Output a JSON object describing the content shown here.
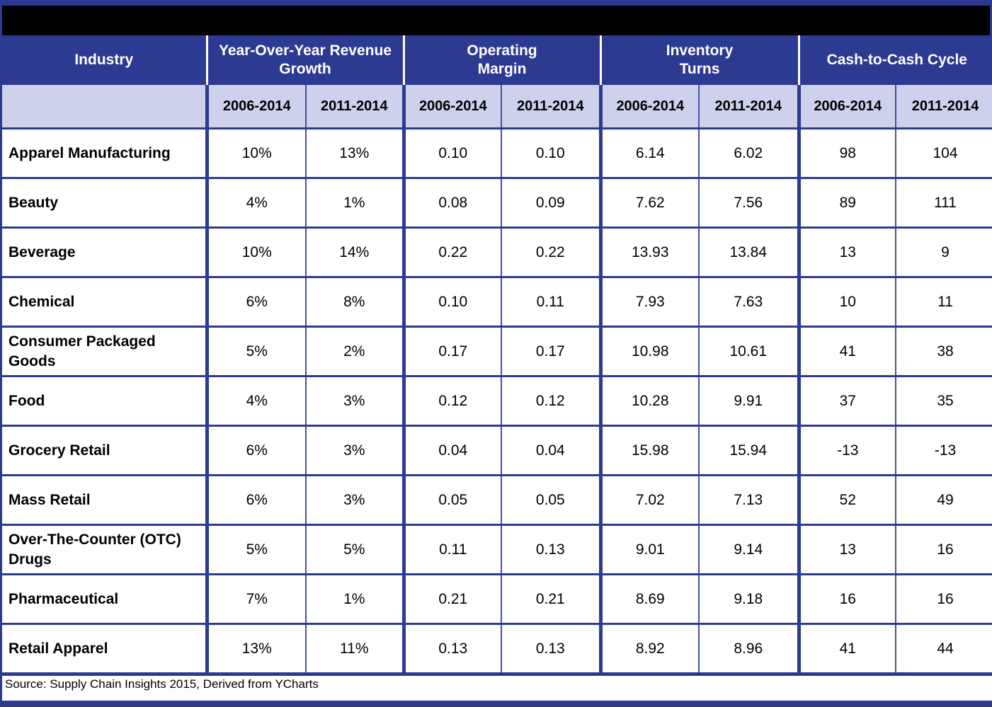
{
  "title_bar": {
    "text": ""
  },
  "table": {
    "group_headers": [
      {
        "label": "Industry"
      },
      {
        "label": "Year-Over-Year Revenue\nGrowth"
      },
      {
        "label": "Operating\nMargin"
      },
      {
        "label": "Inventory\nTurns"
      },
      {
        "label": "Cash-to-Cash Cycle"
      }
    ],
    "period_headers": [
      "2006-2014",
      "2011-2014",
      "2006-2014",
      "2011-2014",
      "2006-2014",
      "2011-2014",
      "2006-2014",
      "2011-2014"
    ],
    "rows": [
      {
        "industry": "Apparel Manufacturing",
        "values": [
          "10%",
          "13%",
          "0.10",
          "0.10",
          "6.14",
          "6.02",
          "98",
          "104"
        ]
      },
      {
        "industry": "Beauty",
        "values": [
          "4%",
          "1%",
          "0.08",
          "0.09",
          "7.62",
          "7.56",
          "89",
          "111"
        ]
      },
      {
        "industry": "Beverage",
        "values": [
          "10%",
          "14%",
          "0.22",
          "0.22",
          "13.93",
          "13.84",
          "13",
          "9"
        ]
      },
      {
        "industry": "Chemical",
        "values": [
          "6%",
          "8%",
          "0.10",
          "0.11",
          "7.93",
          "7.63",
          "10",
          "11"
        ]
      },
      {
        "industry": "Consumer Packaged Goods",
        "values": [
          "5%",
          "2%",
          "0.17",
          "0.17",
          "10.98",
          "10.61",
          "41",
          "38"
        ]
      },
      {
        "industry": "Food",
        "values": [
          "4%",
          "3%",
          "0.12",
          "0.12",
          "10.28",
          "9.91",
          "37",
          "35"
        ]
      },
      {
        "industry": "Grocery Retail",
        "values": [
          "6%",
          "3%",
          "0.04",
          "0.04",
          "15.98",
          "15.94",
          "-13",
          "-13"
        ]
      },
      {
        "industry": "Mass Retail",
        "values": [
          "6%",
          "3%",
          "0.05",
          "0.05",
          "7.02",
          "7.13",
          "52",
          "49"
        ]
      },
      {
        "industry": "Over-The-Counter (OTC) Drugs",
        "values": [
          "5%",
          "5%",
          "0.11",
          "0.13",
          "9.01",
          "9.14",
          "13",
          "16"
        ]
      },
      {
        "industry": "Pharmaceutical",
        "values": [
          "7%",
          "1%",
          "0.21",
          "0.21",
          "8.69",
          "9.18",
          "16",
          "16"
        ]
      },
      {
        "industry": "Retail Apparel",
        "values": [
          "13%",
          "11%",
          "0.13",
          "0.13",
          "8.92",
          "8.96",
          "41",
          "44"
        ]
      }
    ],
    "source": "Source: Supply Chain Insights 2015, Derived from YCharts"
  },
  "colors": {
    "navy": "#2d3a92",
    "lavender": "#cdd1ec",
    "thin_line": "#4252a4",
    "title_bar": "#000000",
    "cell_bg": "#ffffff",
    "header_text": "#ffffff",
    "body_text": "#000000"
  },
  "chart_data": {
    "type": "table",
    "column_groups": [
      "Industry",
      "Year-Over-Year Revenue Growth",
      "Operating Margin",
      "Inventory Turns",
      "Cash-to-Cash Cycle"
    ],
    "columns": [
      "Industry",
      "Year-Over-Year Revenue Growth 2006-2014",
      "Year-Over-Year Revenue Growth 2011-2014",
      "Operating Margin 2006-2014",
      "Operating Margin 2011-2014",
      "Inventory Turns 2006-2014",
      "Inventory Turns 2011-2014",
      "Cash-to-Cash Cycle 2006-2014",
      "Cash-to-Cash Cycle 2011-2014"
    ],
    "rows": [
      [
        "Apparel Manufacturing",
        "10%",
        "13%",
        0.1,
        0.1,
        6.14,
        6.02,
        98,
        104
      ],
      [
        "Beauty",
        "4%",
        "1%",
        0.08,
        0.09,
        7.62,
        7.56,
        89,
        111
      ],
      [
        "Beverage",
        "10%",
        "14%",
        0.22,
        0.22,
        13.93,
        13.84,
        13,
        9
      ],
      [
        "Chemical",
        "6%",
        "8%",
        0.1,
        0.11,
        7.93,
        7.63,
        10,
        11
      ],
      [
        "Consumer Packaged Goods",
        "5%",
        "2%",
        0.17,
        0.17,
        10.98,
        10.61,
        41,
        38
      ],
      [
        "Food",
        "4%",
        "3%",
        0.12,
        0.12,
        10.28,
        9.91,
        37,
        35
      ],
      [
        "Grocery Retail",
        "6%",
        "3%",
        0.04,
        0.04,
        15.98,
        15.94,
        -13,
        -13
      ],
      [
        "Mass Retail",
        "6%",
        "3%",
        0.05,
        0.05,
        7.02,
        7.13,
        52,
        49
      ],
      [
        "Over-The-Counter (OTC) Drugs",
        "5%",
        "5%",
        0.11,
        0.13,
        9.01,
        9.14,
        13,
        16
      ],
      [
        "Pharmaceutical",
        "7%",
        "1%",
        0.21,
        0.21,
        8.69,
        9.18,
        16,
        16
      ],
      [
        "Retail Apparel",
        "13%",
        "11%",
        0.13,
        0.13,
        8.92,
        8.96,
        41,
        44
      ]
    ],
    "source": "Source: Supply Chain Insights 2015, Derived from YCharts"
  }
}
